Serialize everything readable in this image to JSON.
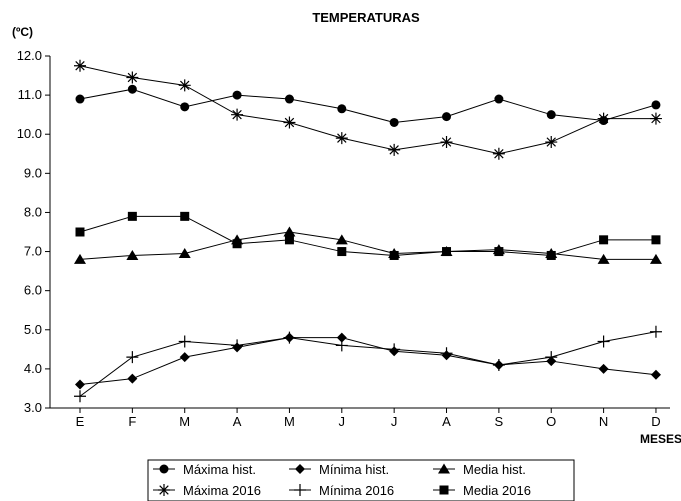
{
  "chart_data": {
    "type": "line",
    "title": "TEMPERATURAS",
    "ylabel": "(ºC)",
    "xlabel": "MESES",
    "categories": [
      "E",
      "F",
      "M",
      "A",
      "M",
      "J",
      "J",
      "A",
      "S",
      "O",
      "N",
      "D"
    ],
    "ylim": [
      3.0,
      12.0
    ],
    "yticks": [
      "3.0",
      "4.0",
      "5.0",
      "6.0",
      "7.0",
      "8.0",
      "9.0",
      "10.0",
      "11.0",
      "12.0"
    ],
    "grid": false,
    "legend_position": "bottom",
    "series": [
      {
        "name": "Máxima hist.",
        "marker": "circle",
        "values": [
          10.9,
          11.15,
          10.7,
          11.0,
          10.9,
          10.65,
          10.3,
          10.45,
          10.9,
          10.5,
          10.35,
          10.75
        ]
      },
      {
        "name": "Mínima hist.",
        "marker": "diamond",
        "values": [
          3.6,
          3.75,
          4.3,
          4.55,
          4.8,
          4.8,
          4.45,
          4.35,
          4.1,
          4.2,
          4.0,
          3.85
        ]
      },
      {
        "name": "Media hist.",
        "marker": "triangle",
        "values": [
          6.8,
          6.9,
          6.95,
          7.3,
          7.5,
          7.3,
          6.95,
          7.0,
          7.05,
          6.95,
          6.8,
          6.8
        ]
      },
      {
        "name": "Máxima 2016",
        "marker": "asterisk",
        "values": [
          11.75,
          11.45,
          11.25,
          10.5,
          10.3,
          9.9,
          9.6,
          9.8,
          9.5,
          9.8,
          10.4,
          10.4
        ]
      },
      {
        "name": "Mínima 2016",
        "marker": "plus",
        "values": [
          3.3,
          4.3,
          4.7,
          4.6,
          4.8,
          4.6,
          4.5,
          4.4,
          4.1,
          4.3,
          4.7,
          4.95
        ]
      },
      {
        "name": "Media 2016",
        "marker": "square",
        "values": [
          7.5,
          7.9,
          7.9,
          7.2,
          7.3,
          7.0,
          6.9,
          7.0,
          7.0,
          6.9,
          7.3,
          7.3
        ]
      }
    ]
  }
}
